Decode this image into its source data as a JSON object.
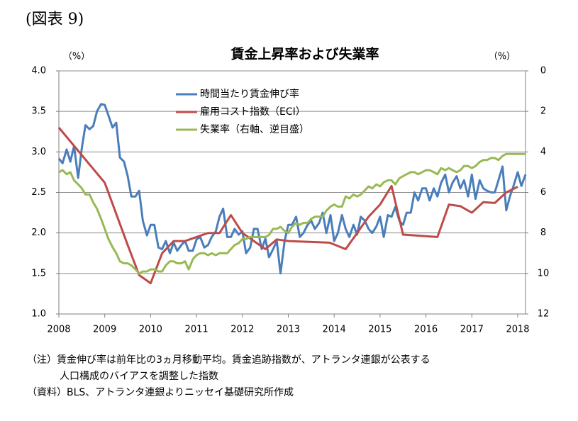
{
  "header": "(図表 9)",
  "chart_data": {
    "type": "line",
    "title": "賃金上昇率および失業率",
    "ylabel": "（%）",
    "y2label": "（%）",
    "x": [
      2008,
      2008.08,
      2008.17,
      2008.25,
      2008.33,
      2008.42,
      2008.5,
      2008.58,
      2008.67,
      2008.75,
      2008.83,
      2008.92,
      2009,
      2009.08,
      2009.17,
      2009.25,
      2009.33,
      2009.42,
      2009.5,
      2009.58,
      2009.67,
      2009.75,
      2009.83,
      2009.92,
      2010,
      2010.08,
      2010.17,
      2010.25,
      2010.33,
      2010.42,
      2010.5,
      2010.58,
      2010.67,
      2010.75,
      2010.83,
      2010.92,
      2011,
      2011.08,
      2011.17,
      2011.25,
      2011.33,
      2011.42,
      2011.5,
      2011.58,
      2011.67,
      2011.75,
      2011.83,
      2011.92,
      2012,
      2012.08,
      2012.17,
      2012.25,
      2012.33,
      2012.42,
      2012.5,
      2012.58,
      2012.67,
      2012.75,
      2012.83,
      2012.92,
      2013,
      2013.08,
      2013.17,
      2013.25,
      2013.33,
      2013.42,
      2013.5,
      2013.58,
      2013.67,
      2013.75,
      2013.83,
      2013.92,
      2014,
      2014.08,
      2014.17,
      2014.25,
      2014.33,
      2014.42,
      2014.5,
      2014.58,
      2014.67,
      2014.75,
      2014.83,
      2014.92,
      2015,
      2015.08,
      2015.17,
      2015.25,
      2015.33,
      2015.42,
      2015.5,
      2015.58,
      2015.67,
      2015.75,
      2015.83,
      2015.92,
      2016,
      2016.08,
      2016.17,
      2016.25,
      2016.33,
      2016.42,
      2016.5,
      2016.58,
      2016.67,
      2016.75,
      2016.83,
      2016.92,
      2017,
      2017.08,
      2017.17,
      2017.25,
      2017.33,
      2017.42,
      2017.5,
      2017.58,
      2017.67,
      2017.75,
      2017.83,
      2017.92,
      2018,
      2018.08,
      2018.17
    ],
    "series": [
      {
        "name": "時間当たり賃金伸び率",
        "color": "#4a7ebb",
        "values": [
          2.92,
          2.86,
          3.03,
          2.88,
          3.07,
          2.68,
          3.05,
          3.33,
          3.28,
          3.32,
          3.5,
          3.59,
          3.58,
          3.45,
          3.3,
          3.36,
          2.93,
          2.88,
          2.7,
          2.45,
          2.45,
          2.52,
          2.15,
          1.97,
          2.1,
          2.1,
          1.82,
          1.8,
          1.9,
          1.75,
          1.88,
          1.78,
          1.85,
          1.9,
          1.78,
          1.78,
          1.92,
          1.95,
          1.82,
          1.85,
          1.95,
          2.02,
          2.2,
          2.3,
          1.95,
          1.95,
          2.05,
          1.98,
          2.02,
          1.75,
          1.82,
          2.05,
          2.05,
          1.8,
          1.93,
          1.7,
          1.8,
          1.9,
          1.5,
          1.9,
          2.1,
          2.1,
          2.2,
          1.95,
          2,
          2.1,
          2.15,
          2.05,
          2.12,
          2.25,
          2,
          2.22,
          1.9,
          2,
          2.22,
          2.05,
          1.95,
          2.1,
          1.98,
          2.2,
          2.15,
          2.05,
          2,
          2.08,
          2.2,
          1.95,
          2.22,
          2.2,
          2.32,
          2.15,
          2.1,
          2.25,
          2.25,
          2.5,
          2.4,
          2.55,
          2.55,
          2.4,
          2.55,
          2.45,
          2.62,
          2.72,
          2.5,
          2.62,
          2.7,
          2.55,
          2.65,
          2.45,
          2.72,
          2.42,
          2.65,
          2.55,
          2.52,
          2.5,
          2.5,
          2.65,
          2.82,
          2.28,
          2.45,
          2.6,
          2.75,
          2.58,
          2.72
        ]
      },
      {
        "name": "雇用コスト指数（ECI）",
        "color": "#be4b48",
        "x": [
          2008,
          2009,
          2009.5,
          2009.75,
          2010,
          2010.25,
          2010.5,
          2010.75,
          2011,
          2011.25,
          2011.5,
          2011.75,
          2012,
          2012.25,
          2012.5,
          2012.75,
          2013,
          2013.9,
          2014.25,
          2014.5,
          2014.75,
          2015,
          2015.25,
          2015.5,
          2016.25,
          2016.5,
          2016.75,
          2017,
          2017.25,
          2017.5,
          2017.75,
          2018
        ],
        "values": [
          3.3,
          2.62,
          1.85,
          1.48,
          1.38,
          1.75,
          1.9,
          1.9,
          1.95,
          2,
          2,
          2.22,
          2,
          1.9,
          1.8,
          1.92,
          1.9,
          1.88,
          1.8,
          2,
          2.2,
          2.35,
          2.58,
          1.98,
          1.95,
          2.35,
          2.33,
          2.25,
          2.38,
          2.37,
          2.5,
          2.57
        ]
      },
      {
        "name": "失業率（右軸、逆目盛）",
        "color": "#98b954",
        "axis": "y2",
        "values": [
          5,
          4.9,
          5.1,
          5,
          5.4,
          5.6,
          5.8,
          6.1,
          6.1,
          6.5,
          6.8,
          7.3,
          7.8,
          8.3,
          8.7,
          9,
          9.4,
          9.5,
          9.5,
          9.6,
          9.8,
          10,
          9.9,
          9.9,
          9.8,
          9.8,
          9.9,
          9.9,
          9.6,
          9.4,
          9.4,
          9.5,
          9.5,
          9.4,
          9.8,
          9.3,
          9.1,
          9,
          9,
          9.1,
          9,
          9.1,
          9,
          9,
          9,
          8.8,
          8.6,
          8.5,
          8.3,
          8.3,
          8.2,
          8.2,
          8.2,
          8.2,
          8.2,
          8.1,
          7.8,
          7.8,
          7.7,
          7.9,
          8,
          7.7,
          7.5,
          7.6,
          7.5,
          7.5,
          7.3,
          7.2,
          7.2,
          7.2,
          6.9,
          6.7,
          6.6,
          6.7,
          6.7,
          6.2,
          6.3,
          6.1,
          6.2,
          6.1,
          5.9,
          5.7,
          5.8,
          5.6,
          5.7,
          5.5,
          5.4,
          5.4,
          5.6,
          5.3,
          5.2,
          5.1,
          5,
          5,
          5.1,
          5,
          4.9,
          4.9,
          5,
          5.1,
          4.8,
          4.9,
          4.8,
          4.9,
          5,
          4.9,
          4.7,
          4.7,
          4.8,
          4.7,
          4.5,
          4.4,
          4.4,
          4.3,
          4.3,
          4.4,
          4.2,
          4.1,
          4.1,
          4.1,
          4.1,
          4.1,
          4.1
        ]
      }
    ],
    "xlim": [
      2008,
      2018.17
    ],
    "xticks": [
      2008,
      2009,
      2010,
      2011,
      2012,
      2013,
      2014,
      2015,
      2016,
      2017,
      2018
    ],
    "ylim": [
      1,
      4
    ],
    "yticks": [
      {
        "value": 1,
        "label": "1.0"
      },
      1.5,
      {
        "value": 2,
        "label": "2.0"
      },
      2.5,
      {
        "value": 3,
        "label": "3.0"
      },
      3.5,
      {
        "value": 4,
        "label": "4.0"
      }
    ],
    "y2lim": [
      12,
      0
    ],
    "y2ticks": [
      0,
      2,
      4,
      6,
      8,
      10,
      12
    ],
    "grid": true,
    "legend": "upper left"
  },
  "notes": [
    "（注）賃金伸び率は前年比の3ヵ月移動平均。賃金追跡指数が、アトランタ連銀が公表する",
    "人口構成のバイアスを調整した指数",
    "（資料）BLS、アトランタ連銀よりニッセイ基礎研究所作成"
  ]
}
